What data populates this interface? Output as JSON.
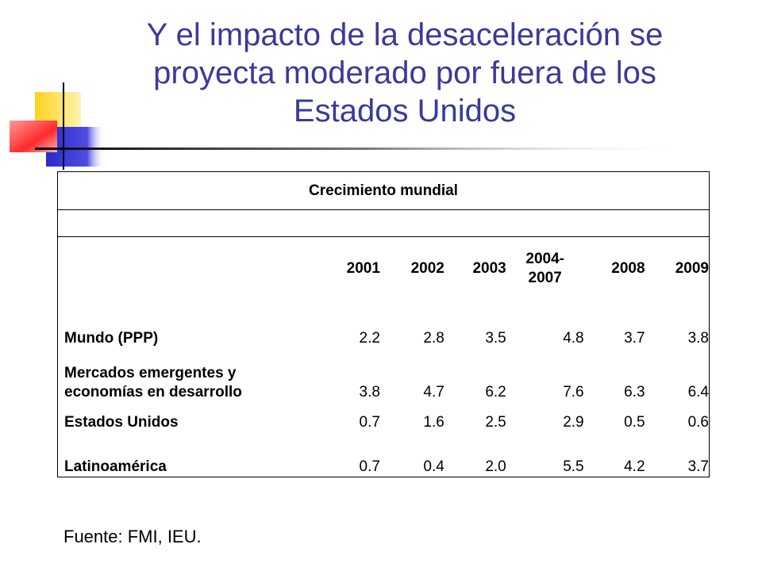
{
  "slide": {
    "title_lines": [
      "Y el impacto de la desaceleración se",
      "proyecta moderado por fuera de los",
      "Estados Unidos"
    ],
    "source": "Fuente: FMI, IEU."
  },
  "table": {
    "caption": "Crecimiento mundial",
    "year_headers": [
      "2001",
      "2002",
      "2003",
      "2004-\n2007",
      "2008",
      "2009"
    ],
    "rows": [
      {
        "label": "Mundo (PPP)",
        "values": [
          "2.2",
          "2.8",
          "3.5",
          "4.8",
          "3.7",
          "3.8"
        ]
      },
      {
        "label_line1": "Mercados emergentes y",
        "label_line2": "economías en desarrollo",
        "values": [
          "3.8",
          "4.7",
          "6.2",
          "7.6",
          "6.3",
          "6.4"
        ]
      },
      {
        "label": "Estados Unidos",
        "values": [
          "0.7",
          "1.6",
          "2.5",
          "2.9",
          "0.5",
          "0.6"
        ]
      },
      {
        "label": "Latinoamérica",
        "values": [
          "0.7",
          "0.4",
          "2.0",
          "5.5",
          "4.2",
          "3.7"
        ]
      }
    ]
  },
  "colors": {
    "title": "#3a3a9a",
    "accent_yellow": "#ffd21f",
    "accent_red": "#ff3333",
    "accent_blue": "#3333cc"
  }
}
